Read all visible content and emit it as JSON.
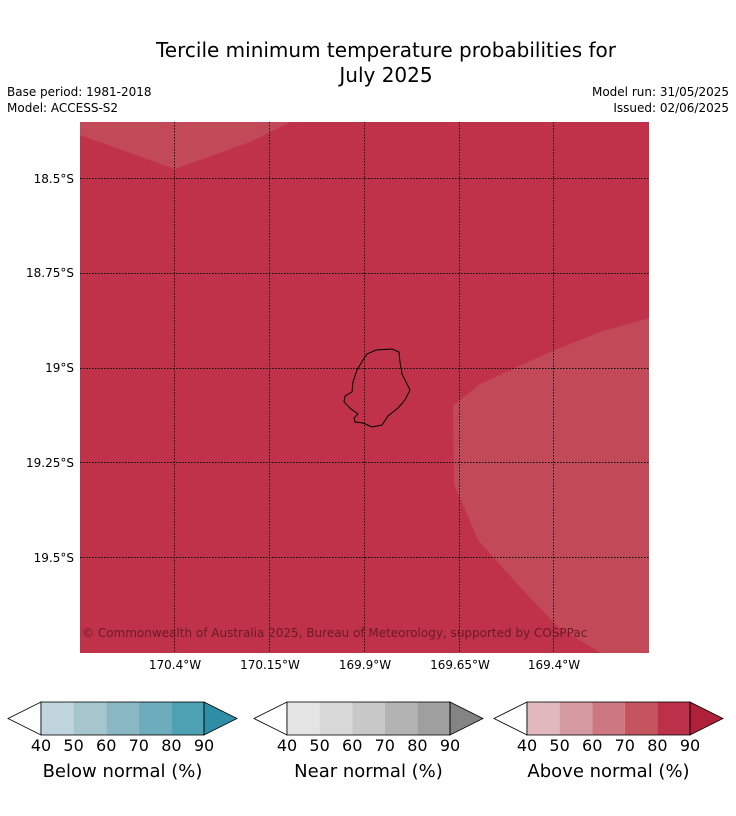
{
  "title": "Tercile minimum temperature probabilities for July 2025",
  "title_line1": "Tercile minimum temperature probabilities for",
  "title_line2": "July 2025",
  "base_period": "Base period: 1981-2018",
  "model": "Model: ACCESS-S2",
  "model_run": "Model run: 31/05/2025",
  "issued": "Issued: 02/06/2025",
  "copyright": "© Commonwealth of Australia 2025, Bureau of Meteorology, supported by COSPPac",
  "map": {
    "latitude_labels": [
      "18.5°S",
      "18.75°S",
      "19°S",
      "19.25°S",
      "19.5°S"
    ],
    "longitude_labels": [
      "170.4°W",
      "170.15°W",
      "169.9°W",
      "169.65°W",
      "169.4°W"
    ],
    "dominant_category": "Above normal",
    "colors": {
      "main_fill": "#bf324a",
      "lighter_fill": "#c24a58",
      "coastline": "#000000"
    }
  },
  "colorbars": [
    {
      "label": "Below normal (%)",
      "ticks": [
        "40",
        "50",
        "60",
        "70",
        "80",
        "90"
      ],
      "colors": [
        "#bfd4dc",
        "#a6c6cd",
        "#89b7c3",
        "#6cacbc",
        "#4ea1b3",
        "#2e8ea5"
      ]
    },
    {
      "label": "Near normal (%)",
      "ticks": [
        "40",
        "50",
        "60",
        "70",
        "80",
        "90"
      ],
      "colors": [
        "#e4e4e4",
        "#d8d8d8",
        "#c8c8c8",
        "#b3b3b3",
        "#9f9f9f",
        "#848484"
      ]
    },
    {
      "label": "Above normal (%)",
      "ticks": [
        "40",
        "50",
        "60",
        "70",
        "80",
        "90"
      ],
      "colors": [
        "#e0b8be",
        "#d69aa2",
        "#cc7781",
        "#c4555f",
        "#bd3049",
        "#b0203a"
      ]
    }
  ]
}
